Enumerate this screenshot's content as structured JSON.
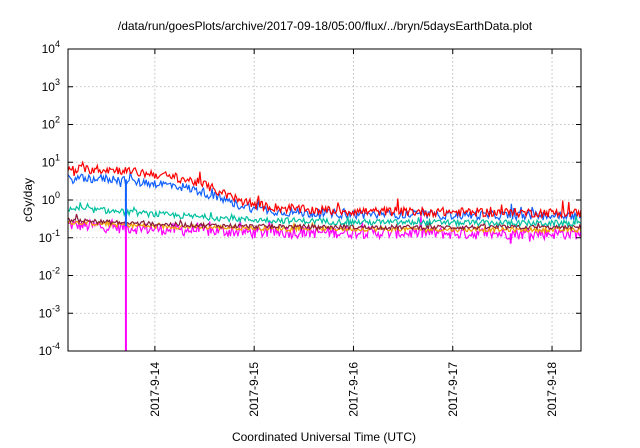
{
  "chart_data": {
    "type": "line",
    "title": "/data/run/goesPlots/archive/2017-09-18/05:00/flux/../bryn/5daysEarthData.plot",
    "xlabel": "Coordinated Universal Time (UTC)",
    "ylabel": "cGy/day",
    "yscale": "log",
    "ylim": [
      0.0001,
      10000
    ],
    "xlim": [
      "2017-09-13T03:00",
      "2017-09-18T07:00"
    ],
    "yticks": [
      {
        "base": "10",
        "exp": "-4"
      },
      {
        "base": "10",
        "exp": "-3"
      },
      {
        "base": "10",
        "exp": "-2"
      },
      {
        "base": "10",
        "exp": "-1"
      },
      {
        "base": "10",
        "exp": "0"
      },
      {
        "base": "10",
        "exp": "1"
      },
      {
        "base": "10",
        "exp": "2"
      },
      {
        "base": "10",
        "exp": "3"
      },
      {
        "base": "10",
        "exp": "4"
      }
    ],
    "xticks": [
      {
        "label": "2017-9-14",
        "value": "2017-09-14T00:00"
      },
      {
        "label": "2017-9-15",
        "value": "2017-09-15T00:00"
      },
      {
        "label": "2017-9-16",
        "value": "2017-09-16T00:00"
      },
      {
        "label": "2017-9-17",
        "value": "2017-09-17T00:00"
      },
      {
        "label": "2017-9-18",
        "value": "2017-09-18T00:00"
      }
    ],
    "grid": true,
    "legend": "none",
    "series": [
      {
        "color": "#ff0000",
        "noise": 0.12,
        "points": [
          [
            "2017-09-13T03:00",
            6.5
          ],
          [
            "2017-09-13T10:00",
            6.5
          ],
          [
            "2017-09-13T16:00",
            6.2
          ],
          [
            "2017-09-13T19:00",
            5.5
          ],
          [
            "2017-09-14T00:00",
            4.8
          ],
          [
            "2017-09-14T06:00",
            3.8
          ],
          [
            "2017-09-14T11:00",
            2.8
          ],
          [
            "2017-09-14T14:00",
            2.0
          ],
          [
            "2017-09-14T17:00",
            1.4
          ],
          [
            "2017-09-14T20:00",
            1.0
          ],
          [
            "2017-09-15T00:00",
            0.75
          ],
          [
            "2017-09-15T06:00",
            0.62
          ],
          [
            "2017-09-15T12:00",
            0.55
          ],
          [
            "2017-09-16T00:00",
            0.5
          ],
          [
            "2017-09-17T00:00",
            0.48
          ],
          [
            "2017-09-18T07:00",
            0.45
          ]
        ]
      },
      {
        "color": "#1060ff",
        "noise": 0.12,
        "points": [
          [
            "2017-09-13T03:00",
            3.6
          ],
          [
            "2017-09-13T10:00",
            3.7
          ],
          [
            "2017-09-13T16:00",
            3.5
          ],
          [
            "2017-09-13T19:00",
            3.0
          ],
          [
            "2017-09-14T00:00",
            2.8
          ],
          [
            "2017-09-14T06:00",
            2.3
          ],
          [
            "2017-09-14T11:00",
            1.7
          ],
          [
            "2017-09-14T14:00",
            1.3
          ],
          [
            "2017-09-14T17:00",
            0.95
          ],
          [
            "2017-09-14T20:00",
            0.75
          ],
          [
            "2017-09-15T00:00",
            0.6
          ],
          [
            "2017-09-15T06:00",
            0.5
          ],
          [
            "2017-09-15T12:00",
            0.45
          ],
          [
            "2017-09-16T00:00",
            0.42
          ],
          [
            "2017-09-17T00:00",
            0.4
          ],
          [
            "2017-09-18T07:00",
            0.38
          ]
        ]
      },
      {
        "color": "#00c0a0",
        "noise": 0.08,
        "points": [
          [
            "2017-09-13T03:00",
            0.6
          ],
          [
            "2017-09-13T12:00",
            0.52
          ],
          [
            "2017-09-14T00:00",
            0.42
          ],
          [
            "2017-09-14T12:00",
            0.35
          ],
          [
            "2017-09-15T00:00",
            0.3
          ],
          [
            "2017-09-16T00:00",
            0.26
          ],
          [
            "2017-09-17T00:00",
            0.25
          ],
          [
            "2017-09-18T07:00",
            0.24
          ]
        ]
      },
      {
        "color": "#8b1a3a",
        "noise": 0.06,
        "points": [
          [
            "2017-09-13T03:00",
            0.3
          ],
          [
            "2017-09-13T12:00",
            0.26
          ],
          [
            "2017-09-14T00:00",
            0.23
          ],
          [
            "2017-09-15T00:00",
            0.2
          ],
          [
            "2017-09-16T00:00",
            0.19
          ],
          [
            "2017-09-18T07:00",
            0.19
          ]
        ]
      },
      {
        "color": "#f0a000",
        "noise": 0.06,
        "points": [
          [
            "2017-09-13T03:00",
            0.26
          ],
          [
            "2017-09-14T00:00",
            0.2
          ],
          [
            "2017-09-15T00:00",
            0.18
          ],
          [
            "2017-09-16T00:00",
            0.17
          ],
          [
            "2017-09-18T07:00",
            0.16
          ]
        ]
      },
      {
        "color": "#ff00ff",
        "noise": 0.16,
        "points": [
          [
            "2017-09-13T03:00",
            0.22
          ],
          [
            "2017-09-14T00:00",
            0.17
          ],
          [
            "2017-09-15T00:00",
            0.14
          ],
          [
            "2017-09-16T00:00",
            0.14
          ],
          [
            "2017-09-17T00:00",
            0.13
          ],
          [
            "2017-09-18T07:00",
            0.13
          ]
        ]
      }
    ],
    "events": [
      {
        "color": "#1060ff",
        "time": "2017-09-13T17:00",
        "low": 0.2,
        "high": 3.5
      },
      {
        "color": "#ff00ff",
        "time": "2017-09-13T17:00",
        "low": 0.0001,
        "high": 0.2
      },
      {
        "color": "#ff00ff",
        "time": "2017-09-17T14:00",
        "low": 0.07,
        "high": 0.13
      }
    ]
  }
}
